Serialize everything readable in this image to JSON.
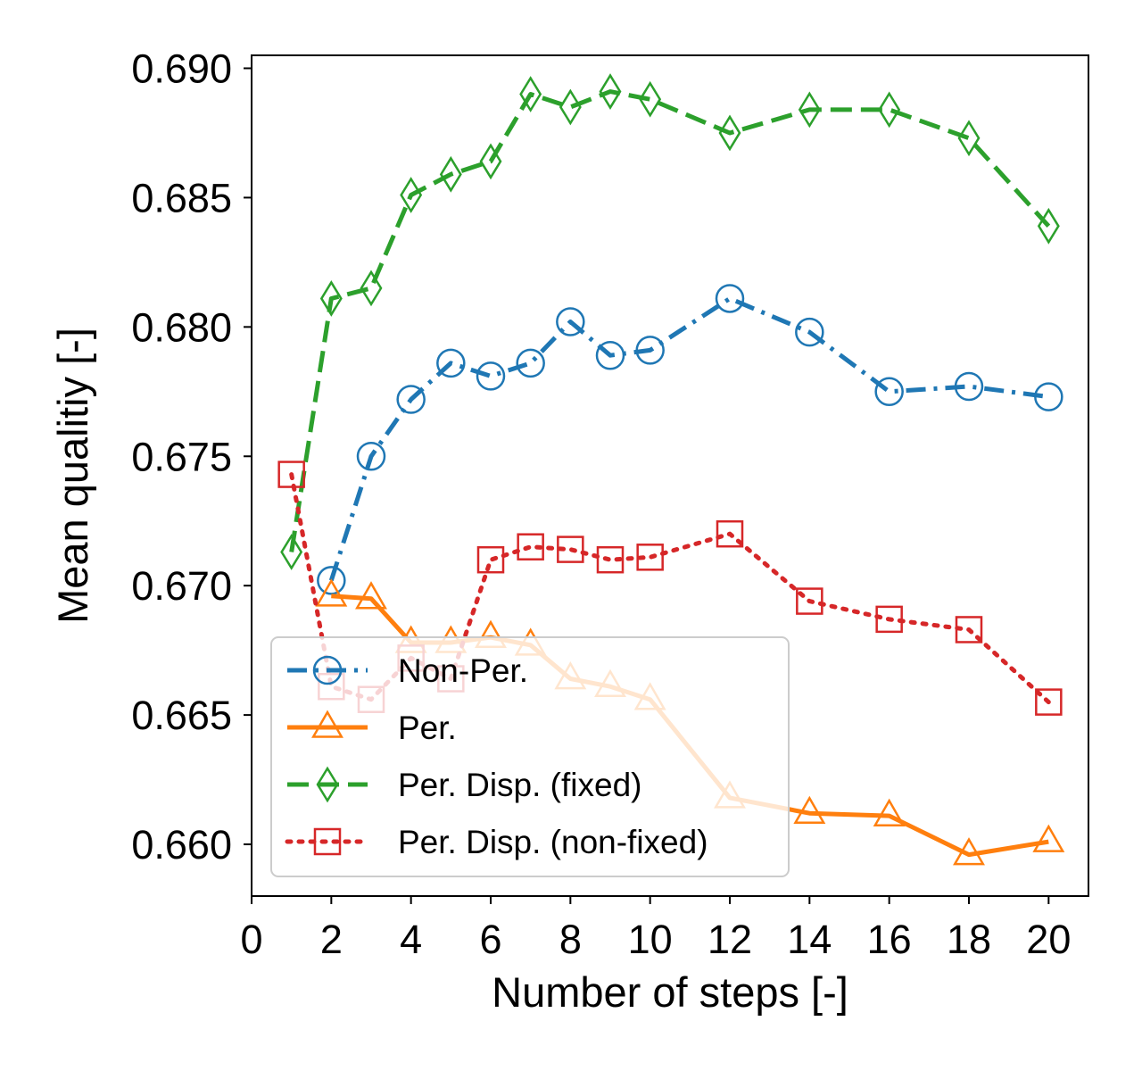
{
  "chart_data": {
    "type": "line",
    "title": "",
    "xlabel": "Number of steps [-]",
    "ylabel": "Mean qualitiy [-]",
    "xlim": [
      0,
      21
    ],
    "ylim": [
      0.658,
      0.6905
    ],
    "x_ticks": [
      0,
      2,
      4,
      6,
      8,
      10,
      12,
      14,
      16,
      18,
      20
    ],
    "y_ticks": [
      0.66,
      0.665,
      0.67,
      0.675,
      0.68,
      0.685,
      0.69
    ],
    "x_tick_labels": [
      "0",
      "2",
      "4",
      "6",
      "8",
      "10",
      "12",
      "14",
      "16",
      "18",
      "20"
    ],
    "y_tick_labels": [
      "0.660",
      "0.665",
      "0.670",
      "0.675",
      "0.680",
      "0.685",
      "0.690"
    ],
    "grid": false,
    "legend_position": "lower-left",
    "series": [
      {
        "name": "Non-Per.",
        "color": "#1f77b4",
        "line_style": "dashdot",
        "marker": "circle",
        "x": [
          2,
          3,
          4,
          5,
          6,
          7,
          8,
          9,
          10,
          12,
          14,
          16,
          18,
          20
        ],
        "y": [
          0.6702,
          0.675,
          0.6772,
          0.6786,
          0.6781,
          0.6786,
          0.6802,
          0.6789,
          0.6791,
          0.6811,
          0.6798,
          0.6775,
          0.6777,
          0.6773
        ]
      },
      {
        "name": "Per.",
        "color": "#ff7f0e",
        "line_style": "solid",
        "marker": "triangle",
        "x": [
          2,
          3,
          4,
          5,
          6,
          7,
          8,
          9,
          10,
          12,
          14,
          16,
          18,
          20
        ],
        "y": [
          0.6696,
          0.6695,
          0.6678,
          0.6678,
          0.668,
          0.6677,
          0.6664,
          0.6661,
          0.6656,
          0.6618,
          0.6612,
          0.6611,
          0.6596,
          0.6601
        ]
      },
      {
        "name": "Per. Disp. (fixed)",
        "color": "#2ca02c",
        "line_style": "dashed",
        "marker": "thin-diamond",
        "x": [
          1,
          2,
          3,
          4,
          5,
          6,
          7,
          8,
          9,
          10,
          12,
          14,
          16,
          18,
          20
        ],
        "y": [
          0.6713,
          0.6811,
          0.6815,
          0.6851,
          0.6859,
          0.6864,
          0.689,
          0.6885,
          0.6891,
          0.6888,
          0.6875,
          0.6884,
          0.6884,
          0.6873,
          0.6839
        ]
      },
      {
        "name": "Per. Disp. (non-fixed)",
        "color": "#d62728",
        "line_style": "dotted",
        "marker": "square",
        "x": [
          1,
          2,
          3,
          4,
          5,
          6,
          7,
          8,
          9,
          10,
          12,
          14,
          16,
          18,
          20
        ],
        "y": [
          0.6743,
          0.6661,
          0.6656,
          0.6672,
          0.6664,
          0.671,
          0.6715,
          0.6714,
          0.671,
          0.6711,
          0.672,
          0.6694,
          0.6687,
          0.6683,
          0.6655
        ]
      }
    ]
  }
}
